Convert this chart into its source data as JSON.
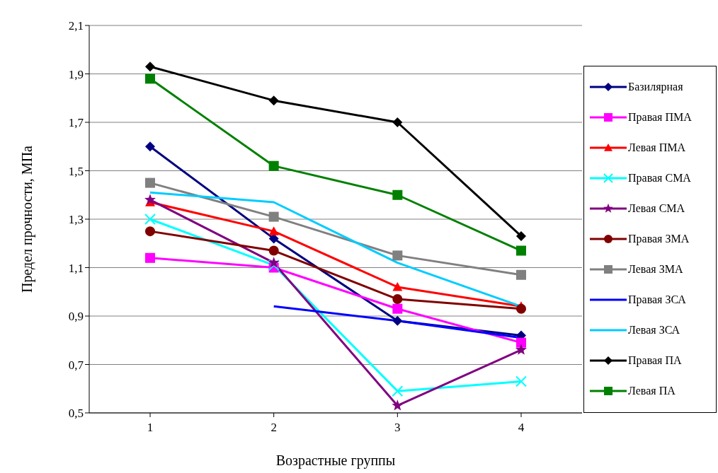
{
  "chart_data": {
    "type": "line",
    "xlabel": "Возрастные группы",
    "ylabel": "Предел прочности, МПа",
    "categories": [
      "1",
      "2",
      "3",
      "4"
    ],
    "series": [
      {
        "name": "Базилярная",
        "color": "#000080",
        "marker": "diamond",
        "values": [
          1.6,
          1.22,
          0.88,
          0.82
        ]
      },
      {
        "name": "Правая ПМА",
        "color": "#ff00ff",
        "marker": "square",
        "values": [
          1.14,
          1.1,
          0.93,
          0.79
        ]
      },
      {
        "name": "Левая ПМА",
        "color": "#ff0000",
        "marker": "triangle",
        "values": [
          1.37,
          1.25,
          1.02,
          0.94
        ]
      },
      {
        "name": "Правая СМА",
        "color": "#00ffff",
        "marker": "cross",
        "values": [
          1.3,
          1.11,
          0.59,
          0.63
        ]
      },
      {
        "name": "Левая СМА",
        "color": "#800080",
        "marker": "star",
        "values": [
          1.38,
          1.12,
          0.53,
          0.76
        ]
      },
      {
        "name": "Правая ЗМА",
        "color": "#800000",
        "marker": "circle",
        "values": [
          1.25,
          1.17,
          0.97,
          0.93
        ]
      },
      {
        "name": "Левая ЗМА",
        "color": "#808080",
        "marker": "square",
        "values": [
          1.45,
          1.31,
          1.15,
          1.07
        ]
      },
      {
        "name": "Правая ЗСА",
        "color": "#0000ff",
        "marker": "none",
        "values": [
          null,
          0.94,
          0.88,
          0.81
        ]
      },
      {
        "name": "Левая ЗСА",
        "color": "#00ccff",
        "marker": "none",
        "values": [
          1.41,
          1.37,
          1.12,
          0.94
        ]
      },
      {
        "name": "Правая ПА",
        "color": "#000000",
        "marker": "diamond",
        "values": [
          1.93,
          1.79,
          1.7,
          1.23
        ]
      },
      {
        "name": "Левая ПА",
        "color": "#008000",
        "marker": "square",
        "values": [
          1.88,
          1.52,
          1.4,
          1.17
        ]
      }
    ],
    "ylim": [
      0.5,
      2.1
    ],
    "yticks": [
      {
        "value": 0.5,
        "label": "0,5"
      },
      {
        "value": 0.7,
        "label": "0,7"
      },
      {
        "value": 0.9,
        "label": "0,9"
      },
      {
        "value": 1.1,
        "label": "1,1"
      },
      {
        "value": 1.3,
        "label": "1,3"
      },
      {
        "value": 1.5,
        "label": "1,5"
      },
      {
        "value": 1.7,
        "label": "1,7"
      },
      {
        "value": 1.9,
        "label": "1,9"
      },
      {
        "value": 2.1,
        "label": "2,1"
      }
    ],
    "grid": "y",
    "legend": "right"
  }
}
